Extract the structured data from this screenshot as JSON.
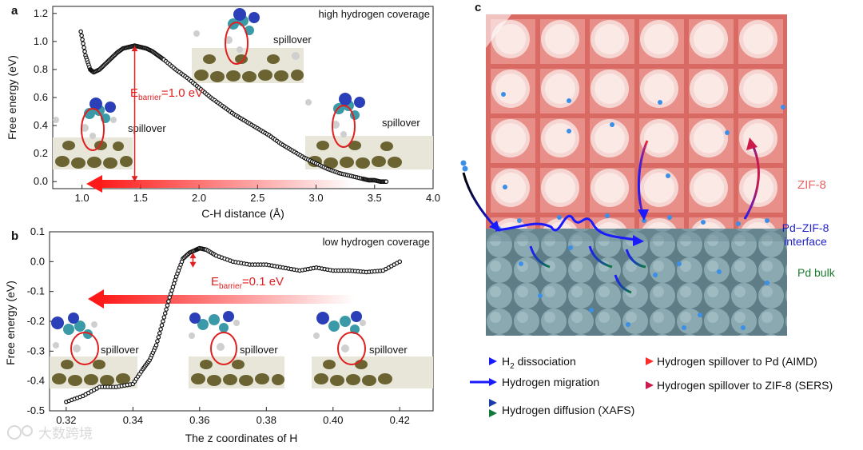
{
  "panels": {
    "a": {
      "label": "a",
      "annotation": "high hydrogen coverage",
      "spillover_labels": [
        "spillover",
        "spillover",
        "spillover"
      ],
      "barrier_main": "E",
      "barrier_sub": "barrier",
      "barrier_value": "=1.0 eV"
    },
    "b": {
      "label": "b",
      "annotation": "low hydrogen coverage",
      "spillover_labels": [
        "spillover",
        "spillover",
        "spillover"
      ],
      "barrier_main": "E",
      "barrier_sub": "barrier",
      "barrier_value": "=0.1 eV"
    },
    "c": {
      "label": "c",
      "zif_label": "ZIF-8",
      "interface_line1": "Pd−ZIF-8",
      "interface_line2": "interface",
      "bulk_label": "Pd bulk",
      "colors": {
        "zif": "#e86262",
        "interface": "#2222cc",
        "bulk": "#1b7a2e"
      }
    }
  },
  "legend": [
    {
      "id": "h2",
      "text_main": "H",
      "text_sub": "2",
      "text_rest": " dissociation",
      "colors": [
        "#000000",
        "#1a1aff"
      ]
    },
    {
      "id": "migr",
      "text_main": "Hydrogen migration",
      "text_sub": "",
      "text_rest": "",
      "colors": [
        "#1a1aff",
        "#1a1aff"
      ]
    },
    {
      "id": "diff",
      "text_main": "Hydrogen diffusion (XAFS)",
      "text_sub": "",
      "text_rest": "",
      "colors": [
        "#1a1aff",
        "#0f7a3a"
      ]
    },
    {
      "id": "pd",
      "text_main": "Hydrogen spillover to Pd (AIMD)",
      "text_sub": "",
      "text_rest": "",
      "colors": [
        "#1a1aff",
        "#ff2a2a"
      ]
    },
    {
      "id": "zif",
      "text_main": "Hydrogen spillover to ZIF-8 (SERS)",
      "text_sub": "",
      "text_rest": "",
      "colors": [
        "#1a1aff",
        "#cc1a4a"
      ]
    }
  ],
  "watermark": "大数跨境",
  "chart_data": [
    {
      "type": "scatter",
      "title": "",
      "xlabel": "C-H distance (Å)",
      "ylabel": "Free energy (eV)",
      "xlim": [
        0.75,
        4.0
      ],
      "ylim": [
        -0.05,
        1.25
      ],
      "xticks": [
        "1.0",
        "1.5",
        "2.0",
        "2.5",
        "3.0",
        "3.5",
        "4.0"
      ],
      "yticks": [
        "0.0",
        "0.2",
        "0.4",
        "0.6",
        "0.8",
        "1.0",
        "1.2"
      ],
      "series": [
        {
          "x": [
            0.99,
            1.03,
            1.07,
            1.1,
            1.15,
            1.2,
            1.25,
            1.3,
            1.35,
            1.4,
            1.45,
            1.5,
            1.55,
            1.6,
            1.65,
            1.7,
            1.8,
            1.9,
            2.0,
            2.1,
            2.2,
            2.3,
            2.4,
            2.5,
            2.6,
            2.7,
            2.8,
            2.9,
            3.0,
            3.1,
            3.2,
            3.3,
            3.4,
            3.45,
            3.5,
            3.55,
            3.6
          ],
          "y": [
            1.07,
            0.9,
            0.8,
            0.78,
            0.8,
            0.84,
            0.88,
            0.92,
            0.95,
            0.96,
            0.97,
            0.96,
            0.95,
            0.93,
            0.9,
            0.87,
            0.8,
            0.74,
            0.67,
            0.6,
            0.54,
            0.48,
            0.43,
            0.38,
            0.33,
            0.27,
            0.22,
            0.17,
            0.13,
            0.09,
            0.06,
            0.04,
            0.02,
            0.01,
            0.01,
            0.0,
            0.0
          ]
        }
      ],
      "barrier": {
        "x": 1.45,
        "y_top": 0.97,
        "y_bottom": 0.0
      }
    },
    {
      "type": "scatter",
      "title": "",
      "xlabel": "The z coordinates of H",
      "ylabel": "Free energy (eV)",
      "xlim": [
        0.315,
        0.43
      ],
      "ylim": [
        -0.5,
        0.1
      ],
      "xticks": [
        "0.32",
        "0.34",
        "0.36",
        "0.38",
        "0.40",
        "0.42"
      ],
      "yticks": [
        "-0.5",
        "-0.4",
        "-0.3",
        "-0.2",
        "-0.1",
        "0.0",
        "0.1"
      ],
      "series": [
        {
          "x": [
            0.32,
            0.325,
            0.33,
            0.335,
            0.34,
            0.343,
            0.345,
            0.347,
            0.349,
            0.351,
            0.353,
            0.355,
            0.357,
            0.359,
            0.36,
            0.362,
            0.365,
            0.37,
            0.375,
            0.38,
            0.385,
            0.39,
            0.395,
            0.4,
            0.405,
            0.41,
            0.415,
            0.42
          ],
          "y": [
            -0.47,
            -0.45,
            -0.42,
            -0.42,
            -0.41,
            -0.36,
            -0.33,
            -0.28,
            -0.2,
            -0.12,
            -0.05,
            0.01,
            0.03,
            0.04,
            0.045,
            0.04,
            0.02,
            0.0,
            -0.01,
            -0.01,
            -0.02,
            -0.03,
            -0.02,
            -0.03,
            -0.03,
            -0.035,
            -0.03,
            0.0
          ]
        }
      ],
      "barrier": {
        "x": 0.358,
        "y_top": 0.03,
        "y_bottom": -0.02
      }
    }
  ]
}
